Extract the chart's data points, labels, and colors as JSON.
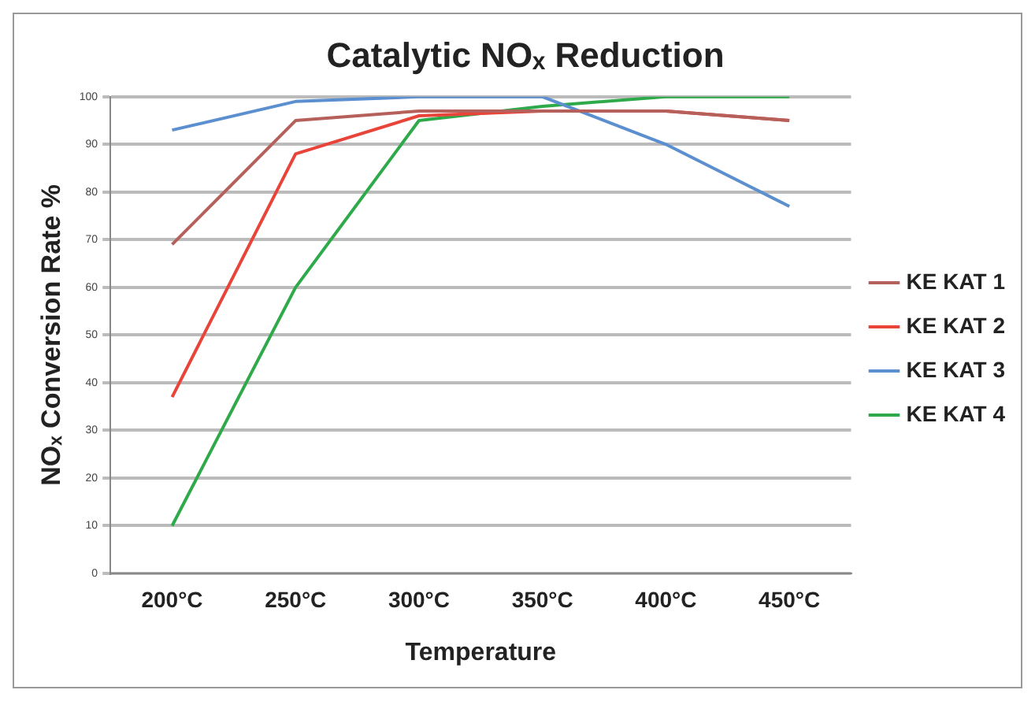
{
  "chart_data": {
    "type": "line",
    "title": "Catalytic NOₓ Reduction",
    "xlabel": "Temperature",
    "ylabel": "NOₓ Conversion Rate %",
    "categories": [
      "200°C",
      "250°C",
      "300°C",
      "350°C",
      "400°C",
      "450°C"
    ],
    "series": [
      {
        "name": "KE KAT 1",
        "color": "#b5605a",
        "values": [
          69,
          95,
          97,
          97,
          97,
          95
        ]
      },
      {
        "name": "KE KAT 2",
        "color": "#e8443a",
        "values": [
          37,
          88,
          96,
          97,
          97,
          95
        ]
      },
      {
        "name": "KE KAT 3",
        "color": "#5b8fd0",
        "values": [
          93,
          99,
          100,
          100,
          90,
          77
        ]
      },
      {
        "name": "KE KAT 4",
        "color": "#2eaa4a",
        "values": [
          10,
          60,
          95,
          98,
          100,
          100
        ]
      }
    ],
    "ylim": [
      0,
      100
    ],
    "yticks": [
      0,
      10,
      20,
      30,
      40,
      50,
      60,
      70,
      80,
      90,
      100
    ],
    "grid": "y",
    "legend": "right",
    "marker": "none",
    "line_style": "solid"
  }
}
